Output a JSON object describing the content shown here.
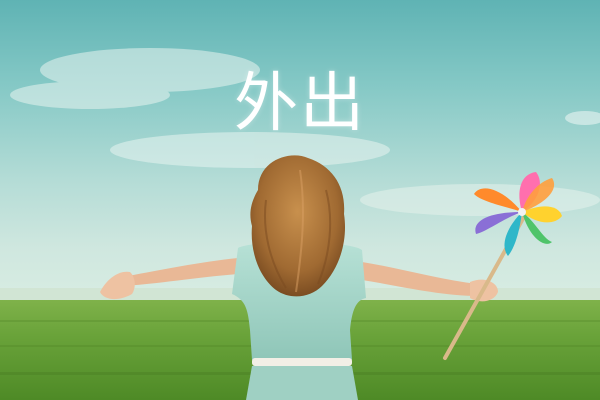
{
  "caption": {
    "text": "外出"
  },
  "scene": {
    "sky_color_top": "#5fb3b4",
    "sky_color_horizon": "#d7ece2",
    "grass_color": "#5f9a2f",
    "hair_color": "#b07a3e",
    "dress_color": "#a9d8cc",
    "pinwheel_colors": [
      "#ff6fae",
      "#ff8a2b",
      "#ffd22e",
      "#4fc46a",
      "#2fb7c9",
      "#8a6fd6"
    ]
  }
}
